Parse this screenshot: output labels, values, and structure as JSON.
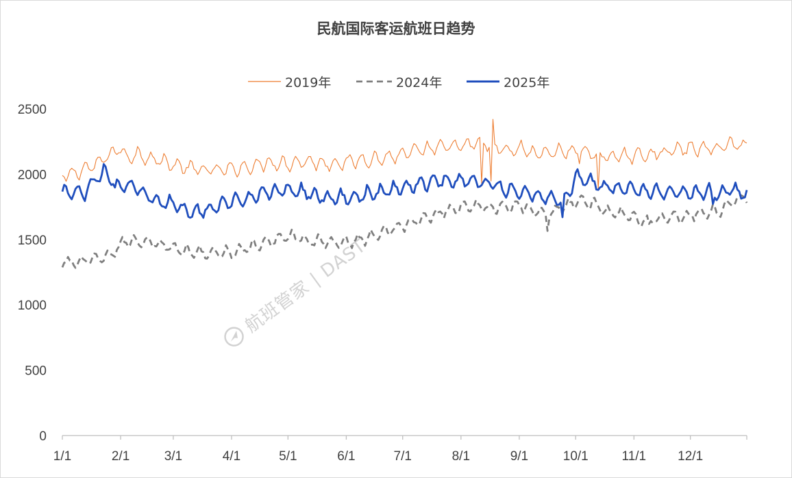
{
  "chart_data": {
    "type": "line",
    "title": "民航国际客运航班日趋势",
    "xlabel": "",
    "ylabel": "",
    "ylim": [
      0,
      2500
    ],
    "yticks": [
      0,
      500,
      1000,
      1500,
      2000,
      2500
    ],
    "ytick_labels": [
      "0",
      "500",
      "1000",
      "1500",
      "2000",
      "2500"
    ],
    "xtick_labels": [
      "1/1",
      "2/1",
      "3/1",
      "4/1",
      "5/1",
      "6/1",
      "7/1",
      "8/1",
      "9/1",
      "10/1",
      "11/1",
      "12/1"
    ],
    "month_day_offsets": [
      0,
      31,
      59,
      90,
      120,
      151,
      181,
      212,
      243,
      273,
      304,
      334
    ],
    "days_in_year": 365,
    "legend_position": "top-center",
    "grid": false,
    "note": "Daily values approximated from the plotted curves; anchor points listed as [day_of_year, value].",
    "series": [
      {
        "name": "2019年",
        "color": "#ED7D31",
        "style": "solid-thin",
        "anchors": [
          [
            0,
            1985
          ],
          [
            5,
            2000
          ],
          [
            12,
            2040
          ],
          [
            18,
            2070
          ],
          [
            25,
            2150
          ],
          [
            31,
            2200
          ],
          [
            33,
            2130
          ],
          [
            40,
            2150
          ],
          [
            48,
            2120
          ],
          [
            55,
            2090
          ],
          [
            62,
            2060
          ],
          [
            70,
            2040
          ],
          [
            78,
            2030
          ],
          [
            90,
            2035
          ],
          [
            100,
            2060
          ],
          [
            110,
            2090
          ],
          [
            120,
            2080
          ],
          [
            130,
            2100
          ],
          [
            140,
            2080
          ],
          [
            150,
            2090
          ],
          [
            160,
            2110
          ],
          [
            170,
            2120
          ],
          [
            181,
            2150
          ],
          [
            190,
            2180
          ],
          [
            200,
            2200
          ],
          [
            208,
            2220
          ],
          [
            212,
            2210
          ],
          [
            222,
            2240
          ],
          [
            228,
            2220
          ],
          [
            236,
            2180
          ],
          [
            243,
            2190
          ],
          [
            252,
            2160
          ],
          [
            262,
            2170
          ],
          [
            273,
            2180
          ],
          [
            280,
            2160
          ],
          [
            285,
            2150
          ],
          [
            295,
            2130
          ],
          [
            304,
            2140
          ],
          [
            315,
            2160
          ],
          [
            325,
            2180
          ],
          [
            334,
            2200
          ],
          [
            345,
            2190
          ],
          [
            355,
            2230
          ],
          [
            364,
            2220
          ]
        ],
        "amplitude": 55,
        "events": [
          [
            223,
            -330
          ],
          [
            228,
            -310
          ],
          [
            229,
            160
          ],
          [
            244,
            40
          ],
          [
            275,
            -60
          ],
          [
            285,
            -330
          ]
        ]
      },
      {
        "name": "2024年",
        "color": "#7F7F7F",
        "style": "dashed",
        "anchors": [
          [
            0,
            1320
          ],
          [
            10,
            1330
          ],
          [
            20,
            1350
          ],
          [
            28,
            1400
          ],
          [
            32,
            1480
          ],
          [
            40,
            1490
          ],
          [
            48,
            1480
          ],
          [
            55,
            1450
          ],
          [
            62,
            1420
          ],
          [
            68,
            1400
          ],
          [
            75,
            1400
          ],
          [
            82,
            1390
          ],
          [
            90,
            1400
          ],
          [
            100,
            1440
          ],
          [
            110,
            1480
          ],
          [
            118,
            1530
          ],
          [
            124,
            1520
          ],
          [
            130,
            1490
          ],
          [
            140,
            1480
          ],
          [
            151,
            1480
          ],
          [
            160,
            1500
          ],
          [
            170,
            1560
          ],
          [
            181,
            1600
          ],
          [
            190,
            1650
          ],
          [
            200,
            1700
          ],
          [
            212,
            1750
          ],
          [
            218,
            1760
          ],
          [
            225,
            1740
          ],
          [
            235,
            1750
          ],
          [
            243,
            1760
          ],
          [
            250,
            1720
          ],
          [
            258,
            1700
          ],
          [
            265,
            1740
          ],
          [
            273,
            1790
          ],
          [
            282,
            1780
          ],
          [
            290,
            1720
          ],
          [
            300,
            1690
          ],
          [
            308,
            1640
          ],
          [
            315,
            1660
          ],
          [
            322,
            1670
          ],
          [
            330,
            1680
          ],
          [
            340,
            1700
          ],
          [
            350,
            1720
          ],
          [
            358,
            1790
          ],
          [
            364,
            1830
          ]
        ],
        "amplitude": 45,
        "events": [
          [
            258,
            -110
          ],
          [
            312,
            -50
          ]
        ]
      },
      {
        "name": "2025年",
        "color": "#1F4EBD",
        "style": "solid-thick",
        "anchors": [
          [
            0,
            1840
          ],
          [
            3,
            1860
          ],
          [
            8,
            1850
          ],
          [
            14,
            1900
          ],
          [
            18,
            1960
          ],
          [
            22,
            2010
          ],
          [
            25,
            1990
          ],
          [
            28,
            1900
          ],
          [
            32,
            1930
          ],
          [
            38,
            1900
          ],
          [
            45,
            1850
          ],
          [
            52,
            1790
          ],
          [
            60,
            1760
          ],
          [
            68,
            1700
          ],
          [
            72,
            1720
          ],
          [
            80,
            1740
          ],
          [
            90,
            1790
          ],
          [
            100,
            1830
          ],
          [
            110,
            1860
          ],
          [
            120,
            1880
          ],
          [
            130,
            1860
          ],
          [
            140,
            1820
          ],
          [
            151,
            1820
          ],
          [
            160,
            1840
          ],
          [
            170,
            1860
          ],
          [
            181,
            1900
          ],
          [
            192,
            1930
          ],
          [
            200,
            1950
          ],
          [
            212,
            1950
          ],
          [
            222,
            1950
          ],
          [
            232,
            1900
          ],
          [
            243,
            1870
          ],
          [
            252,
            1840
          ],
          [
            260,
            1820
          ],
          [
            266,
            1790
          ],
          [
            270,
            1880
          ],
          [
            273,
            1980
          ],
          [
            280,
            1950
          ],
          [
            285,
            1910
          ],
          [
            295,
            1890
          ],
          [
            304,
            1880
          ],
          [
            315,
            1870
          ],
          [
            325,
            1870
          ],
          [
            334,
            1860
          ],
          [
            345,
            1860
          ],
          [
            355,
            1870
          ],
          [
            364,
            1860
          ]
        ],
        "amplitude": 55,
        "events": [
          [
            12,
            -60
          ],
          [
            266,
            -130
          ],
          [
            346,
            -70
          ]
        ]
      }
    ]
  },
  "watermark": {
    "text": "航班管家 | DAST",
    "icon": "plane-logo-icon"
  }
}
